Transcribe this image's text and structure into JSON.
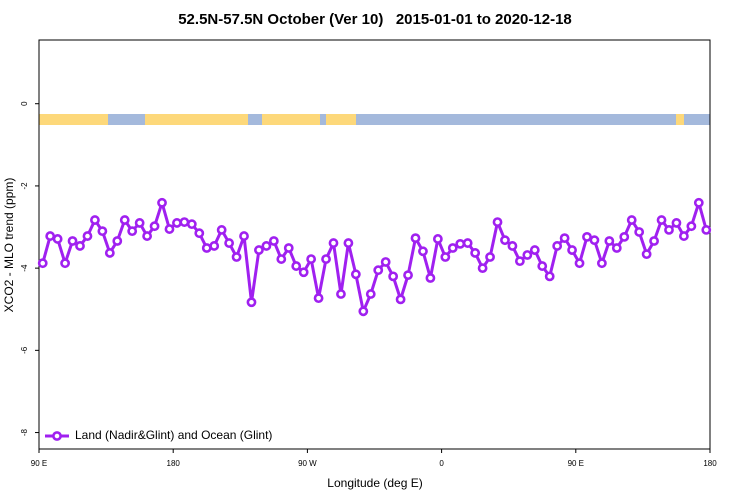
{
  "chart_data": {
    "type": "line",
    "title": "52.5N-57.5N October (Ver 10)   2015-01-01 to 2020-12-18",
    "x_label": "Longitude (deg E)",
    "y_label": "XCO2 - MLO trend (ppm)",
    "xlim": [
      90,
      540
    ],
    "ylim": [
      -8.4,
      1.55
    ],
    "xticks": [
      {
        "value": 90,
        "label": "90 E"
      },
      180,
      {
        "value": 270,
        "label": "90 W"
      },
      {
        "value": 360,
        "label": "0"
      },
      {
        "value": 450,
        "label": "90 E"
      },
      {
        "value": 540,
        "label": "180"
      }
    ],
    "yticks": [
      0,
      -2,
      -4,
      -6,
      -8
    ],
    "legend": "bottomleft",
    "x": [
      92.5,
      97.5,
      102.5,
      107.5,
      112.5,
      117.5,
      122.5,
      127.5,
      132.5,
      137.5,
      142.5,
      147.5,
      152.5,
      157.5,
      162.5,
      167.5,
      172.5,
      177.5,
      182.5,
      187.5,
      192.5,
      197.5,
      202.5,
      207.5,
      212.5,
      217.5,
      222.5,
      227.5,
      232.5,
      237.5,
      242.5,
      247.5,
      252.5,
      257.5,
      262.5,
      267.5,
      272.5,
      277.5,
      282.5,
      287.5,
      292.5,
      297.5,
      302.5,
      307.5,
      312.5,
      317.5,
      322.5,
      327.5,
      332.5,
      337.5,
      342.5,
      347.5,
      352.5,
      357.5,
      362.5,
      367.5,
      372.5,
      377.5,
      382.5,
      387.5,
      392.5,
      397.5,
      402.5,
      407.5,
      412.5,
      417.5,
      422.5,
      427.5,
      432.5,
      437.5,
      442.5,
      447.5,
      452.5,
      457.5,
      462.5,
      467.5,
      472.5,
      477.5,
      482.5,
      487.5,
      492.5,
      497.5,
      502.5,
      507.5,
      512.5,
      517.5,
      522.5,
      527.5,
      532.5,
      537.5
    ],
    "series": [
      {
        "name": "Land (Nadir&Glint) and Ocean (Glint)",
        "color": "#a020f0",
        "values": [
          -3.88,
          -3.22,
          -3.29,
          -3.88,
          -3.34,
          -3.46,
          -3.22,
          -2.83,
          -3.1,
          -3.63,
          -3.34,
          -2.83,
          -3.1,
          -2.9,
          -3.22,
          -2.98,
          -2.41,
          -3.05,
          -2.9,
          -2.88,
          -2.93,
          -3.15,
          -3.51,
          -3.46,
          -3.07,
          -3.39,
          -3.73,
          -3.22,
          -4.83,
          -3.56,
          -3.46,
          -3.34,
          -3.78,
          -3.51,
          -3.95,
          -4.1,
          -3.78,
          -4.73,
          -3.78,
          -3.39,
          -4.63,
          -3.39,
          -4.15,
          -5.05,
          -4.63,
          -4.05,
          -3.85,
          -4.2,
          -4.76,
          -4.17,
          -3.27,
          -3.59,
          -4.24,
          -3.29,
          -3.73,
          -3.51,
          -3.41,
          -3.39,
          -3.63,
          -4.0,
          -3.73,
          -2.88,
          -3.32,
          -3.46,
          -3.83,
          -3.68,
          -3.56,
          -3.95,
          -4.2,
          -3.46,
          -3.27,
          -3.56,
          -3.88,
          -3.24,
          -3.32,
          -3.88,
          -3.34,
          -3.51,
          -3.24,
          -2.83,
          -3.12,
          -3.66,
          -3.34,
          -2.83,
          -3.07,
          -2.9,
          -3.22,
          -2.98,
          -2.41,
          -3.07
        ]
      }
    ]
  }
}
